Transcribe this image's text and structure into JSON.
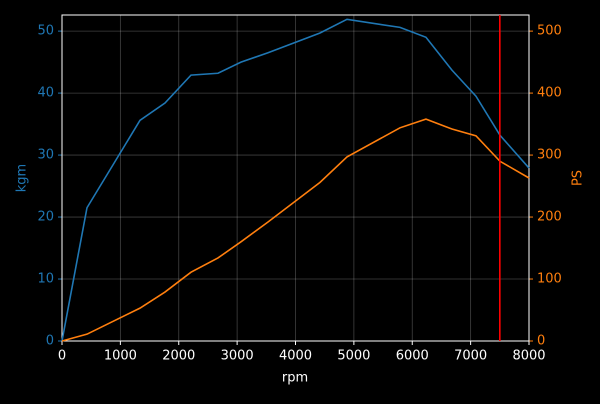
{
  "chart_data": {
    "type": "line",
    "background": "#000000",
    "grid": true,
    "x_label": "rpm",
    "y_label": "kgm",
    "y2_label": "PS",
    "x": [
      0,
      428,
      1336,
      1764,
      2210,
      2672,
      3066,
      3529,
      4420,
      4882,
      5790,
      6235,
      6680,
      7092,
      7503,
      8000
    ],
    "series": [
      {
        "name": "kgm",
        "color": "#1f77b4",
        "values": [
          0,
          21.5,
          35.6,
          38.4,
          42.9,
          43.2,
          45.0,
          46.5,
          49.7,
          51.9,
          50.6,
          49.0,
          43.7,
          39.5,
          33.2,
          27.9
        ]
      },
      {
        "name": "PS",
        "color": "#ff7f0e",
        "axis": "y2",
        "values": [
          0,
          11,
          53,
          79,
          111,
          134,
          160,
          192,
          256,
          297,
          344,
          358,
          342,
          331,
          290,
          263
        ]
      }
    ],
    "redline": {
      "x": 7500,
      "color": "#ff0000"
    },
    "xlim": [
      0,
      8000
    ],
    "xticks": [
      0,
      1000,
      2000,
      3000,
      4000,
      5000,
      6000,
      7000,
      8000
    ],
    "ylim": [
      0,
      52.6
    ],
    "yticks": [
      0,
      10,
      20,
      30,
      40,
      50
    ],
    "y2lim": [
      0,
      526
    ],
    "y2ticks": [
      0,
      100,
      200,
      300,
      400,
      500
    ]
  }
}
